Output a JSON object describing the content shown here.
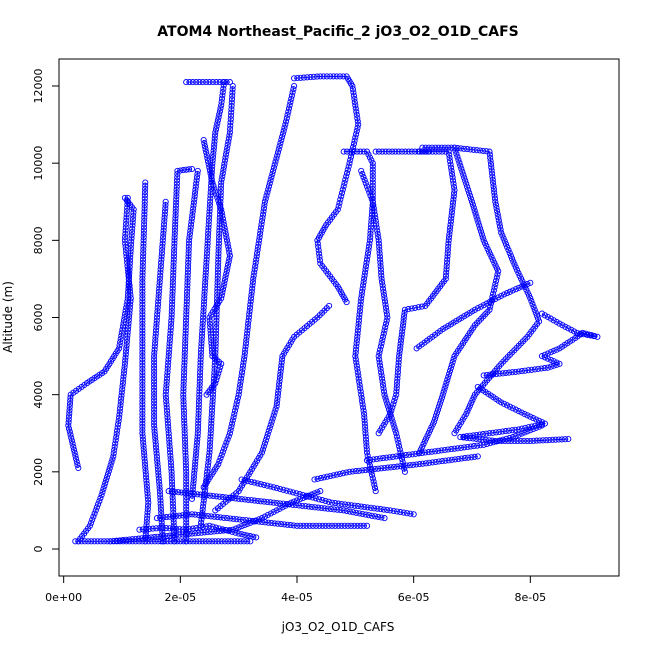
{
  "chart_data": {
    "type": "scatter",
    "title": "ATOM4 Northeast_Pacific_2 jO3_O2_O1D_CAFS",
    "xlabel": "jO3_O2_O1D_CAFS",
    "ylabel": "Altitude (m)",
    "xlim": [
      -8e-07,
      9.52e-05
    ],
    "ylim": [
      -700,
      12700
    ],
    "x_ticks": [
      0,
      2e-05,
      4e-05,
      6e-05,
      8e-05
    ],
    "x_tick_labels": [
      "0e+00",
      "2e-05",
      "4e-05",
      "6e-05",
      "8e-05"
    ],
    "y_ticks": [
      0,
      2000,
      4000,
      6000,
      8000,
      10000,
      12000
    ],
    "y_tick_labels": [
      "0",
      "2000",
      "4000",
      "6000",
      "8000",
      "10000",
      "12000"
    ],
    "color": "#0000ff",
    "marker": "open-circle",
    "grid": false,
    "series": [
      {
        "points": [
          [
            2.5e-06,
            2100
          ],
          [
            8e-07,
            3200
          ],
          [
            1.2e-06,
            4000
          ],
          [
            4e-06,
            4300
          ],
          [
            7e-06,
            4600
          ],
          [
            9.5e-06,
            5200
          ],
          [
            1.1e-05,
            6500
          ],
          [
            1.15e-05,
            7800
          ],
          [
            1.2e-05,
            8800
          ],
          [
            1.05e-05,
            9100
          ]
        ]
      },
      {
        "points": [
          [
            2.5e-06,
            200
          ],
          [
            4.5e-06,
            600
          ],
          [
            6.5e-06,
            1400
          ],
          [
            8.5e-06,
            2400
          ],
          [
            9.5e-06,
            3400
          ],
          [
            1.05e-05,
            4800
          ],
          [
            1.15e-05,
            6500
          ],
          [
            1.05e-05,
            8000
          ],
          [
            1.1e-05,
            9100
          ]
        ]
      },
      {
        "points": [
          [
            1.4e-05,
            200
          ],
          [
            1.45e-05,
            1200
          ],
          [
            1.35e-05,
            3000
          ],
          [
            1.35e-05,
            5000
          ],
          [
            1.35e-05,
            7000
          ],
          [
            1.4e-05,
            9500
          ]
        ]
      },
      {
        "points": [
          [
            1.7e-05,
            200
          ],
          [
            1.65e-05,
            1500
          ],
          [
            1.55e-05,
            3200
          ],
          [
            1.55e-05,
            5000
          ],
          [
            1.65e-05,
            7000
          ],
          [
            1.75e-05,
            9000
          ]
        ]
      },
      {
        "points": [
          [
            1.9e-05,
            200
          ],
          [
            1.85e-05,
            2000
          ],
          [
            1.75e-05,
            4000
          ],
          [
            1.85e-05,
            6000
          ],
          [
            1.9e-05,
            8000
          ],
          [
            1.95e-05,
            9800
          ],
          [
            2.2e-05,
            9850
          ]
        ]
      },
      {
        "points": [
          [
            2.1e-05,
            200
          ],
          [
            2.1e-05,
            2000
          ],
          [
            2.05e-05,
            4000
          ],
          [
            2.1e-05,
            6000
          ],
          [
            2.15e-05,
            8000
          ],
          [
            2.3e-05,
            9800
          ]
        ]
      },
      {
        "points": [
          [
            2.2e-05,
            1300
          ],
          [
            2.3e-05,
            3000
          ],
          [
            2.35e-05,
            5000
          ],
          [
            2.45e-05,
            7500
          ],
          [
            2.55e-05,
            10000
          ],
          [
            2.6e-05,
            10800
          ],
          [
            2.7e-05,
            11500
          ],
          [
            2.75e-05,
            12100
          ]
        ]
      },
      {
        "points": [
          [
            2.35e-05,
            600
          ],
          [
            2.5e-05,
            2500
          ],
          [
            2.6e-05,
            5000
          ],
          [
            2.65e-05,
            7500
          ],
          [
            2.7e-05,
            9500
          ],
          [
            2.85e-05,
            10800
          ],
          [
            2.9e-05,
            12000
          ]
        ]
      },
      {
        "points": [
          [
            2.45e-05,
            4000
          ],
          [
            2.6e-05,
            4300
          ],
          [
            2.7e-05,
            4800
          ],
          [
            2.55e-05,
            5000
          ],
          [
            2.5e-05,
            6000
          ],
          [
            2.7e-05,
            6500
          ],
          [
            2.85e-05,
            7600
          ],
          [
            2.7e-05,
            8800
          ],
          [
            2.55e-05,
            9500
          ],
          [
            2.4e-05,
            10600
          ]
        ]
      },
      {
        "points": [
          [
            2.1e-05,
            12100
          ],
          [
            2.5e-05,
            12100
          ],
          [
            2.85e-05,
            12100
          ]
        ]
      },
      {
        "points": [
          [
            2.4e-05,
            1600
          ],
          [
            2.65e-05,
            2200
          ],
          [
            2.85e-05,
            3000
          ],
          [
            3e-05,
            4000
          ],
          [
            3.1e-05,
            5000
          ],
          [
            3.25e-05,
            7000
          ],
          [
            3.45e-05,
            9000
          ],
          [
            3.8e-05,
            11000
          ],
          [
            3.95e-05,
            12000
          ]
        ]
      },
      {
        "points": [
          [
            2.6e-05,
            1000
          ],
          [
            3e-05,
            1500
          ],
          [
            3.4e-05,
            2500
          ],
          [
            3.65e-05,
            3700
          ],
          [
            3.75e-05,
            5000
          ],
          [
            3.95e-05,
            5500
          ],
          [
            4.35e-05,
            6000
          ],
          [
            4.55e-05,
            6300
          ]
        ]
      },
      {
        "points": [
          [
            3.95e-05,
            12200
          ],
          [
            4.4e-05,
            12250
          ],
          [
            4.85e-05,
            12250
          ],
          [
            4.95e-05,
            12000
          ],
          [
            5.05e-05,
            11000
          ],
          [
            4.9e-05,
            10000
          ],
          [
            4.8e-05,
            9400
          ],
          [
            4.7e-05,
            8800
          ],
          [
            4.5e-05,
            8400
          ],
          [
            4.35e-05,
            8000
          ],
          [
            4.4e-05,
            7400
          ],
          [
            4.7e-05,
            6800
          ],
          [
            4.85e-05,
            6400
          ]
        ]
      },
      {
        "points": [
          [
            4.8e-05,
            10300
          ],
          [
            5.2e-05,
            10300
          ],
          [
            5.3e-05,
            10000
          ],
          [
            5.3e-05,
            9000
          ],
          [
            5.4e-05,
            8000
          ],
          [
            5.45e-05,
            7000
          ],
          [
            5.55e-05,
            6000
          ],
          [
            5.4e-05,
            5000
          ],
          [
            5.5e-05,
            4000
          ],
          [
            5.7e-05,
            3000
          ],
          [
            5.85e-05,
            2000
          ]
        ]
      },
      {
        "points": [
          [
            5.35e-05,
            10300
          ],
          [
            5.8e-05,
            10300
          ],
          [
            6.25e-05,
            10300
          ]
        ]
      },
      {
        "points": [
          [
            5.1e-05,
            9800
          ],
          [
            5.3e-05,
            9000
          ],
          [
            5.25e-05,
            8000
          ],
          [
            5.1e-05,
            6500
          ],
          [
            5e-05,
            5000
          ],
          [
            5.15e-05,
            3500
          ],
          [
            5.2e-05,
            2500
          ],
          [
            5.35e-05,
            1500
          ]
        ]
      },
      {
        "points": [
          [
            6.1e-05,
            10300
          ],
          [
            6.6e-05,
            10300
          ],
          [
            6.7e-05,
            9300
          ],
          [
            6.6e-05,
            8000
          ],
          [
            6.55e-05,
            7000
          ],
          [
            6.2e-05,
            6300
          ],
          [
            5.85e-05,
            6200
          ],
          [
            5.75e-05,
            5000
          ],
          [
            5.7e-05,
            4000
          ],
          [
            5.6e-05,
            3500
          ],
          [
            5.4e-05,
            3000
          ]
        ]
      },
      {
        "points": [
          [
            6.15e-05,
            10400
          ],
          [
            6.7e-05,
            10400
          ],
          [
            7e-05,
            9000
          ],
          [
            7.2e-05,
            8000
          ],
          [
            7.45e-05,
            7200
          ],
          [
            7.3e-05,
            6200
          ],
          [
            7.05e-05,
            5800
          ],
          [
            6.7e-05,
            5000
          ],
          [
            6.5e-05,
            4000
          ],
          [
            6.35e-05,
            3300
          ],
          [
            6.1e-05,
            2500
          ]
        ]
      },
      {
        "points": [
          [
            6.7e-05,
            10400
          ],
          [
            7.3e-05,
            10300
          ],
          [
            7.4e-05,
            9000
          ],
          [
            7.5e-05,
            8200
          ],
          [
            7.75e-05,
            7300
          ],
          [
            8e-05,
            6500
          ],
          [
            8.15e-05,
            5900
          ],
          [
            7.95e-05,
            5500
          ],
          [
            7.5e-05,
            4800
          ],
          [
            7.05e-05,
            4000
          ],
          [
            6.9e-05,
            3500
          ],
          [
            6.7e-05,
            3000
          ]
        ]
      },
      {
        "points": [
          [
            6.05e-05,
            5200
          ],
          [
            6.5e-05,
            5700
          ],
          [
            7.05e-05,
            6200
          ],
          [
            7.55e-05,
            6600
          ],
          [
            8e-05,
            6900
          ]
        ]
      },
      {
        "points": [
          [
            8.2e-05,
            6100
          ],
          [
            8.55e-05,
            5800
          ],
          [
            8.8e-05,
            5600
          ],
          [
            9.15e-05,
            5500
          ],
          [
            8.9e-05,
            5600
          ],
          [
            8.5e-05,
            5200
          ],
          [
            8.2e-05,
            5000
          ],
          [
            8.5e-05,
            4800
          ],
          [
            8.3e-05,
            4700
          ],
          [
            7.8e-05,
            4600
          ],
          [
            7.2e-05,
            4500
          ]
        ]
      },
      {
        "points": [
          [
            7.1e-05,
            4200
          ],
          [
            7.5e-05,
            3800
          ],
          [
            7.9e-05,
            3500
          ],
          [
            8.25e-05,
            3250
          ],
          [
            7.8e-05,
            3100
          ],
          [
            7.3e-05,
            3000
          ],
          [
            6.8e-05,
            2900
          ],
          [
            7.4e-05,
            2800
          ],
          [
            8e-05,
            2800
          ],
          [
            8.65e-05,
            2850
          ]
        ]
      },
      {
        "points": [
          [
            5.2e-05,
            2300
          ],
          [
            5.7e-05,
            2400
          ],
          [
            6.2e-05,
            2500
          ],
          [
            6.7e-05,
            2600
          ],
          [
            7.2e-05,
            2700
          ],
          [
            7.7e-05,
            2900
          ],
          [
            8.2e-05,
            3200
          ]
        ]
      },
      {
        "points": [
          [
            4.3e-05,
            1800
          ],
          [
            4.9e-05,
            2000
          ],
          [
            5.5e-05,
            2100
          ],
          [
            6.1e-05,
            2200
          ],
          [
            6.6e-05,
            2300
          ],
          [
            7.1e-05,
            2400
          ]
        ]
      },
      {
        "points": [
          [
            3.05e-05,
            1800
          ],
          [
            3.6e-05,
            1600
          ],
          [
            4.1e-05,
            1400
          ],
          [
            4.6e-05,
            1200
          ],
          [
            5.1e-05,
            1100
          ],
          [
            5.6e-05,
            1000
          ],
          [
            6e-05,
            900
          ]
        ]
      },
      {
        "points": [
          [
            1.8e-05,
            1500
          ],
          [
            2.4e-05,
            1400
          ],
          [
            3e-05,
            1300
          ],
          [
            3.6e-05,
            1200
          ],
          [
            4.2e-05,
            1100
          ],
          [
            4.8e-05,
            1000
          ],
          [
            5.5e-05,
            800
          ]
        ]
      },
      {
        "points": [
          [
            1.6e-05,
            800
          ],
          [
            2.2e-05,
            900
          ],
          [
            2.8e-05,
            800
          ],
          [
            3.4e-05,
            700
          ],
          [
            4e-05,
            600
          ],
          [
            4.6e-05,
            600
          ],
          [
            5.2e-05,
            600
          ]
        ]
      },
      {
        "points": [
          [
            8e-06,
            200
          ],
          [
            1.5e-05,
            300
          ],
          [
            2.2e-05,
            400
          ],
          [
            2.9e-05,
            500
          ],
          [
            3.4e-05,
            800
          ],
          [
            3.9e-05,
            1200
          ],
          [
            4.4e-05,
            1500
          ]
        ]
      },
      {
        "points": [
          [
            2e-06,
            200
          ],
          [
            8e-06,
            200
          ],
          [
            1.4e-05,
            200
          ],
          [
            2e-05,
            200
          ],
          [
            2.6e-05,
            200
          ],
          [
            3.2e-05,
            200
          ]
        ]
      },
      {
        "points": [
          [
            1.3e-05,
            500
          ],
          [
            1.7e-05,
            550
          ],
          [
            2.1e-05,
            500
          ],
          [
            2.5e-05,
            600
          ],
          [
            3e-05,
            400
          ],
          [
            3.3e-05,
            300
          ]
        ]
      }
    ]
  }
}
